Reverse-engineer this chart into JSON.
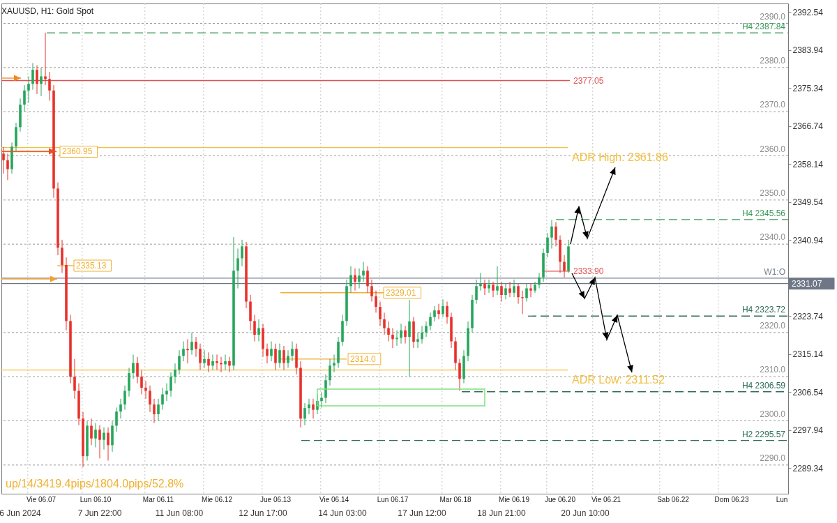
{
  "chart_data": {
    "type": "candlestick",
    "title": "XAUUSD, H1:  Gold Spot",
    "categories": [
      null,
      null,
      null,
      null,
      null,
      null,
      null,
      null,
      null,
      "Vie 06.07",
      null,
      null,
      null,
      null,
      null,
      null,
      null,
      null,
      null,
      null,
      null,
      null,
      "Lun 06.10",
      null,
      null,
      null,
      null,
      null,
      null,
      null,
      null,
      null,
      null,
      null,
      null,
      null,
      null,
      "Mar 06.11",
      null,
      null,
      null,
      null,
      null,
      null,
      null,
      null,
      null,
      null,
      null,
      null,
      null,
      "Mie 06.12",
      null,
      null,
      null,
      null,
      null,
      null,
      null,
      null,
      null,
      null,
      null,
      null,
      null,
      "Jue 06.13",
      null,
      null,
      null,
      null,
      null,
      null,
      null,
      null,
      null,
      null,
      null,
      null,
      null,
      "Vie 06.14",
      null,
      null,
      null,
      null,
      null,
      null,
      null,
      null,
      null,
      null,
      null,
      null,
      null,
      "Lun 06.17",
      null,
      null,
      null,
      null,
      null,
      null,
      null,
      null,
      null,
      null,
      null,
      null,
      null,
      null,
      "Mar 06.18",
      null,
      null,
      null,
      null,
      null,
      null,
      null,
      null,
      null,
      null,
      null,
      null,
      null,
      "Mie 06.19",
      null,
      null,
      null,
      null,
      null,
      null,
      null,
      null,
      null,
      null,
      "Jue 06.20",
      null,
      null,
      null,
      null,
      null,
      null,
      null,
      null,
      null,
      null,
      "Vie 06.21",
      null,
      null,
      null,
      null,
      null,
      null,
      null,
      null,
      null,
      null,
      null,
      null,
      null,
      null,
      null,
      "Sab 06.22",
      null,
      null,
      null,
      null,
      null,
      null,
      null,
      null,
      null,
      null,
      null,
      null,
      null,
      "Dom 06.23",
      null,
      null,
      null,
      null,
      null,
      null,
      null,
      null,
      null,
      null,
      null,
      "Lun",
      null
    ],
    "ohlc": [
      [
        2360.5,
        2362.0,
        2356.0,
        2359.0
      ],
      [
        2359.0,
        2360.5,
        2354.5,
        2357.0
      ],
      [
        2357.0,
        2363.0,
        2356.0,
        2362.1
      ],
      [
        2362.1,
        2367.5,
        2361.0,
        2366.5
      ],
      [
        2366.5,
        2373.0,
        2365.5,
        2371.6
      ],
      [
        2371.6,
        2376.0,
        2370.0,
        2374.8
      ],
      [
        2374.8,
        2378.0,
        2372.0,
        2376.3
      ],
      [
        2376.3,
        2381.0,
        2375.0,
        2379.5
      ],
      [
        2379.5,
        2380.5,
        2374.0,
        2376.3
      ],
      [
        2376.3,
        2380.0,
        2373.5,
        2378.0
      ],
      [
        2378.0,
        2387.9,
        2376.0,
        2377.4
      ],
      [
        2377.4,
        2379.0,
        2372.5,
        2374.8
      ],
      [
        2374.8,
        2376.0,
        2350.5,
        2352.6
      ],
      [
        2352.6,
        2354.0,
        2337.5,
        2339.2
      ],
      [
        2339.2,
        2341.0,
        2333.5,
        2335.3
      ],
      [
        2335.3,
        2337.0,
        2320.5,
        2322.6
      ],
      [
        2322.6,
        2324.0,
        2308.5,
        2310.0
      ],
      [
        2310.0,
        2314.0,
        2305.0,
        2306.8
      ],
      [
        2306.8,
        2308.5,
        2299.0,
        2300.5
      ],
      [
        2300.5,
        2302.0,
        2289.5,
        2292.0
      ],
      [
        2292.0,
        2300.0,
        2291.0,
        2298.9
      ],
      [
        2298.9,
        2300.5,
        2294.5,
        2296.0
      ],
      [
        2296.0,
        2299.5,
        2294.0,
        2298.0
      ],
      [
        2298.0,
        2299.0,
        2291.5,
        2295.7
      ],
      [
        2295.7,
        2298.5,
        2293.5,
        2297.3
      ],
      [
        2297.3,
        2298.5,
        2291.0,
        2294.5
      ],
      [
        2294.5,
        2300.0,
        2293.0,
        2298.9
      ],
      [
        2298.9,
        2303.0,
        2297.5,
        2302.1
      ],
      [
        2302.1,
        2305.0,
        2300.5,
        2303.7
      ],
      [
        2303.7,
        2308.0,
        2302.5,
        2306.8
      ],
      [
        2306.8,
        2312.0,
        2305.5,
        2310.8
      ],
      [
        2310.8,
        2315.0,
        2309.5,
        2313.1
      ],
      [
        2313.1,
        2314.5,
        2308.5,
        2310.0
      ],
      [
        2310.0,
        2311.5,
        2306.0,
        2307.5
      ],
      [
        2307.5,
        2309.0,
        2305.0,
        2306.8
      ],
      [
        2306.8,
        2308.0,
        2302.0,
        2303.7
      ],
      [
        2303.7,
        2305.0,
        2299.5,
        2301.5
      ],
      [
        2301.5,
        2305.0,
        2300.0,
        2303.7
      ],
      [
        2303.7,
        2307.5,
        2302.5,
        2306.0
      ],
      [
        2306.0,
        2308.5,
        2304.5,
        2306.8
      ],
      [
        2306.8,
        2311.0,
        2305.5,
        2310.0
      ],
      [
        2310.0,
        2313.0,
        2308.5,
        2311.6
      ],
      [
        2311.6,
        2316.0,
        2310.5,
        2314.7
      ],
      [
        2314.7,
        2318.0,
        2313.5,
        2316.3
      ],
      [
        2316.3,
        2318.5,
        2313.0,
        2316.0
      ],
      [
        2316.0,
        2320.0,
        2315.0,
        2317.9
      ],
      [
        2317.9,
        2319.0,
        2314.5,
        2316.3
      ],
      [
        2316.3,
        2317.5,
        2311.5,
        2313.1
      ],
      [
        2313.1,
        2316.0,
        2312.0,
        2314.0
      ],
      [
        2314.0,
        2315.5,
        2311.0,
        2312.5
      ],
      [
        2312.5,
        2315.0,
        2311.5,
        2313.5
      ],
      [
        2313.5,
        2315.0,
        2311.5,
        2313.1
      ],
      [
        2313.1,
        2314.5,
        2311.0,
        2312.8
      ],
      [
        2312.8,
        2315.0,
        2311.5,
        2313.5
      ],
      [
        2313.5,
        2314.5,
        2311.0,
        2312.5
      ],
      [
        2312.5,
        2341.6,
        2311.5,
        2334.0
      ],
      [
        2334.0,
        2339.0,
        2330.0,
        2336.8
      ],
      [
        2336.8,
        2341.0,
        2335.0,
        2339.5
      ],
      [
        2339.5,
        2340.5,
        2325.5,
        2327.0
      ],
      [
        2327.0,
        2328.5,
        2320.5,
        2322.6
      ],
      [
        2322.6,
        2324.0,
        2318.0,
        2319.5
      ],
      [
        2319.5,
        2323.0,
        2318.0,
        2321.0
      ],
      [
        2321.0,
        2322.0,
        2314.5,
        2316.3
      ],
      [
        2316.3,
        2317.5,
        2313.0,
        2314.7
      ],
      [
        2314.7,
        2318.0,
        2313.5,
        2316.3
      ],
      [
        2316.3,
        2317.5,
        2311.5,
        2313.1
      ],
      [
        2313.1,
        2317.5,
        2312.0,
        2316.0
      ],
      [
        2316.0,
        2317.0,
        2311.5,
        2313.1
      ],
      [
        2313.1,
        2316.0,
        2312.0,
        2314.7
      ],
      [
        2314.7,
        2318.0,
        2313.5,
        2316.3
      ],
      [
        2316.3,
        2317.5,
        2310.5,
        2312.0
      ],
      [
        2312.0,
        2313.5,
        2298.5,
        2300.5
      ],
      [
        2300.5,
        2304.0,
        2299.0,
        2302.9
      ],
      [
        2302.9,
        2305.0,
        2301.5,
        2303.7
      ],
      [
        2303.7,
        2305.0,
        2300.5,
        2302.5
      ],
      [
        2302.5,
        2306.0,
        2301.5,
        2304.5
      ],
      [
        2304.5,
        2306.5,
        2303.0,
        2305.2
      ],
      [
        2305.2,
        2310.5,
        2304.0,
        2309.2
      ],
      [
        2309.2,
        2314.0,
        2308.0,
        2312.5
      ],
      [
        2312.5,
        2315.0,
        2311.0,
        2313.1
      ],
      [
        2313.1,
        2319.0,
        2312.0,
        2317.9
      ],
      [
        2317.9,
        2324.0,
        2317.0,
        2322.6
      ],
      [
        2322.6,
        2332.0,
        2321.5,
        2330.5
      ],
      [
        2330.5,
        2335.0,
        2329.0,
        2333.0
      ],
      [
        2333.0,
        2334.5,
        2329.5,
        2331.5
      ],
      [
        2331.5,
        2334.5,
        2330.0,
        2332.9
      ],
      [
        2332.9,
        2336.0,
        2331.5,
        2334.0
      ],
      [
        2334.0,
        2335.0,
        2329.0,
        2330.5
      ],
      [
        2330.5,
        2332.0,
        2327.0,
        2328.2
      ],
      [
        2328.2,
        2329.5,
        2324.5,
        2325.8
      ],
      [
        2325.8,
        2327.0,
        2321.5,
        2323.0
      ],
      [
        2323.0,
        2324.5,
        2319.5,
        2321.0
      ],
      [
        2321.0,
        2322.5,
        2318.0,
        2319.5
      ],
      [
        2319.5,
        2321.0,
        2316.5,
        2318.5
      ],
      [
        2318.5,
        2320.5,
        2317.0,
        2318.8
      ],
      [
        2318.8,
        2322.0,
        2317.5,
        2320.5
      ],
      [
        2320.5,
        2321.5,
        2317.5,
        2319.0
      ],
      [
        2319.0,
        2327.4,
        2310.0,
        2322.5
      ],
      [
        2322.5,
        2323.5,
        2316.5,
        2317.9
      ],
      [
        2317.9,
        2320.0,
        2316.5,
        2318.5
      ],
      [
        2318.5,
        2321.5,
        2317.5,
        2320.0
      ],
      [
        2320.0,
        2322.5,
        2319.0,
        2321.5
      ],
      [
        2321.5,
        2324.5,
        2320.5,
        2323.5
      ],
      [
        2323.5,
        2326.0,
        2322.5,
        2325.0
      ],
      [
        2325.0,
        2326.5,
        2323.0,
        2324.2
      ],
      [
        2324.2,
        2327.5,
        2323.5,
        2326.0
      ],
      [
        2326.0,
        2327.0,
        2322.0,
        2323.5
      ],
      [
        2323.5,
        2324.5,
        2316.5,
        2318.0
      ],
      [
        2318.0,
        2319.0,
        2311.5,
        2313.1
      ],
      [
        2313.1,
        2314.0,
        2306.8,
        2309.5
      ],
      [
        2309.5,
        2316.0,
        2308.5,
        2314.7
      ],
      [
        2314.7,
        2322.5,
        2313.5,
        2321.0
      ],
      [
        2321.0,
        2328.5,
        2320.0,
        2327.4
      ],
      [
        2327.4,
        2332.0,
        2326.5,
        2330.5
      ],
      [
        2330.5,
        2333.5,
        2329.5,
        2331.0
      ],
      [
        2331.0,
        2332.0,
        2328.5,
        2330.0
      ],
      [
        2330.0,
        2332.0,
        2329.0,
        2330.8
      ],
      [
        2330.8,
        2331.5,
        2328.0,
        2329.5
      ],
      [
        2329.5,
        2335.0,
        2328.5,
        2330.5
      ],
      [
        2330.5,
        2331.5,
        2327.0,
        2328.5
      ],
      [
        2328.5,
        2331.0,
        2327.5,
        2330.0
      ],
      [
        2330.0,
        2331.5,
        2328.0,
        2329.0
      ],
      [
        2329.0,
        2332.0,
        2328.0,
        2330.5
      ],
      [
        2330.5,
        2331.0,
        2326.5,
        2328.0
      ],
      [
        2328.0,
        2329.5,
        2324.2,
        2327.8
      ],
      [
        2327.8,
        2331.0,
        2327.0,
        2330.0
      ],
      [
        2330.0,
        2331.0,
        2328.0,
        2329.5
      ],
      [
        2329.5,
        2331.5,
        2329.0,
        2330.8
      ],
      [
        2330.8,
        2333.5,
        2330.0,
        2332.5
      ],
      [
        2332.5,
        2339.0,
        2331.5,
        2338.0
      ],
      [
        2338.0,
        2342.5,
        2337.0,
        2341.5
      ],
      [
        2341.5,
        2345.5,
        2339.0,
        2344.0
      ],
      [
        2344.0,
        2345.0,
        2339.5,
        2341.0
      ],
      [
        2341.0,
        2342.0,
        2333.5,
        2336.0
      ],
      [
        2336.0,
        2337.5,
        2332.5,
        2334.0
      ],
      [
        2334.0,
        2341.0,
        2333.5,
        2339.5
      ],
      null,
      null,
      null,
      null,
      null,
      null,
      null,
      null,
      null,
      null,
      null,
      null,
      null,
      null,
      null,
      null,
      null,
      null,
      null,
      null,
      null,
      null,
      null,
      null,
      null,
      null,
      null,
      null,
      null,
      null,
      null,
      null,
      null,
      null,
      null,
      null,
      null,
      null,
      null,
      null,
      null,
      null,
      null,
      null,
      null,
      null,
      null,
      null,
      null,
      null,
      null,
      null
    ],
    "colors": [
      "#e8312a",
      "#e8312a",
      "#26a65b",
      "#26a65b",
      "#26a65b",
      "#26a65b",
      "#26a65b",
      "#26a65b",
      "#e8312a",
      "#26a65b",
      "#e8312a",
      "#e8312a",
      "#e8312a",
      "#e8312a",
      "#e8312a",
      "#e8312a",
      "#e8312a",
      "#e8312a",
      "#e8312a",
      "#e8312a",
      "#26a65b",
      "#e8312a",
      "#26a65b",
      "#e8312a",
      "#26a65b",
      "#e8312a",
      "#26a65b",
      "#26a65b",
      "#26a65b",
      "#26a65b",
      "#26a65b",
      "#26a65b",
      "#e8312a",
      "#e8312a",
      "#e8312a",
      "#e8312a",
      "#e8312a",
      "#26a65b",
      "#26a65b",
      "#26a65b",
      "#26a65b",
      "#26a65b",
      "#26a65b",
      "#26a65b",
      "#e8312a",
      "#26a65b",
      "#e8312a",
      "#e8312a",
      "#26a65b",
      "#e8312a",
      "#26a65b",
      "#e8312a",
      "#e8312a",
      "#26a65b",
      "#e8312a",
      "#26a65b",
      "#26a65b",
      "#26a65b",
      "#e8312a",
      "#e8312a",
      "#e8312a",
      "#26a65b",
      "#e8312a",
      "#e8312a",
      "#26a65b",
      "#e8312a",
      "#26a65b",
      "#e8312a",
      "#26a65b",
      "#26a65b",
      "#e8312a",
      "#e8312a",
      "#26a65b",
      "#26a65b",
      "#e8312a",
      "#26a65b",
      "#26a65b",
      "#26a65b",
      "#26a65b",
      "#26a65b",
      "#26a65b",
      "#26a65b",
      "#26a65b",
      "#26a65b",
      "#e8312a",
      "#26a65b",
      "#26a65b",
      "#e8312a",
      "#e8312a",
      "#e8312a",
      "#e8312a",
      "#e8312a",
      "#e8312a",
      "#e8312a",
      "#26a65b",
      "#26a65b",
      "#e8312a",
      "#26a65b",
      "#e8312a",
      "#26a65b",
      "#26a65b",
      "#26a65b",
      "#26a65b",
      "#26a65b",
      "#e8312a",
      "#26a65b",
      "#e8312a",
      "#e8312a",
      "#e8312a",
      "#e8312a",
      "#26a65b",
      "#26a65b",
      "#26a65b",
      "#26a65b",
      "#26a65b",
      "#e8312a",
      "#26a65b",
      "#e8312a",
      "#26a65b",
      "#e8312a",
      "#26a65b",
      "#e8312a",
      "#26a65b",
      "#e8312a",
      "#e8312a",
      "#26a65b",
      "#e8312a",
      "#26a65b",
      "#26a65b",
      "#26a65b",
      "#26a65b",
      "#26a65b",
      "#e8312a",
      "#e8312a",
      "#e8312a",
      "#26a65b",
      null,
      null,
      null,
      null,
      null,
      null,
      null,
      null,
      null,
      null,
      null,
      null,
      null,
      null,
      null,
      null,
      null,
      null,
      null,
      null,
      null,
      null,
      null,
      null,
      null,
      null,
      null,
      null,
      null,
      null,
      null,
      null,
      null,
      null,
      null,
      null,
      null,
      null,
      null,
      null,
      null,
      null,
      null,
      null,
      null,
      null,
      null,
      null,
      null,
      null,
      null,
      null
    ],
    "ylim": [
      2283.5,
      2394.5
    ],
    "yticks": [
      2392.54,
      2383.94,
      2375.34,
      2366.74,
      2358.14,
      2349.54,
      2340.94,
      2323.74,
      2315.14,
      2306.54,
      2297.94,
      2289.34
    ],
    "y2lim": [
      2283.5,
      2394.5
    ],
    "y2ticks": [
      {
        "value": 2390,
        "label": "2390.0"
      },
      {
        "value": 2380,
        "label": "2380.0"
      },
      {
        "value": 2370,
        "label": "2370.0"
      },
      {
        "value": 2360,
        "label": "2360.0"
      },
      {
        "value": 2350,
        "label": "2350.0"
      },
      {
        "value": 2340,
        "label": "2340.0"
      },
      {
        "value": 2320,
        "label": "2320.0"
      },
      {
        "value": 2310,
        "label": "2310.0"
      },
      {
        "value": 2300,
        "label": "2300.0"
      },
      {
        "value": 2290,
        "label": "2290.0"
      }
    ],
    "grid": true,
    "ref_lines": [
      {
        "axis": "y",
        "value": 2387.84,
        "label": "H4 2387.84",
        "color": "#3a9a5a",
        "line_style": "dashed"
      },
      {
        "axis": "y",
        "value": 2377.05,
        "label": "2377.05",
        "color": "#e05050",
        "line_style": "solid"
      },
      {
        "axis": "y",
        "value": 2361.86,
        "label": "ADR High: 2361.86",
        "color": "#f0c040",
        "line_style": "solid"
      },
      {
        "axis": "y",
        "value": 2360.95,
        "label": "2360.95",
        "color": "#f0b030",
        "line_style": "solid"
      },
      {
        "axis": "y",
        "value": 2345.56,
        "label": "H4 2345.56",
        "color": "#3a9a5a",
        "line_style": "dashed"
      },
      {
        "axis": "y",
        "value": 2335.13,
        "label": "2335.13",
        "color": "#f0b030",
        "line_style": "solid"
      },
      {
        "axis": "y",
        "value": 2333.9,
        "label": "2333.90",
        "color": "#e05050",
        "line_style": "solid"
      },
      {
        "axis": "y",
        "value": 2332.3,
        "label": "W1:O",
        "color": "#7a8290",
        "line_style": "solid"
      },
      {
        "axis": "y",
        "value": 2331.07,
        "label": "2331.07",
        "color": "#6f7787",
        "line_style": "solid"
      },
      {
        "axis": "y",
        "value": 2329.01,
        "label": "2329.01",
        "color": "#f0b030",
        "line_style": "solid"
      },
      {
        "axis": "y",
        "value": 2323.72,
        "label": "H4 2323.72",
        "color": "#2e6b5a",
        "line_style": "dashed"
      },
      {
        "axis": "y",
        "value": 2314.0,
        "label": "2314.0",
        "color": "#f0b030",
        "line_style": "solid"
      },
      {
        "axis": "y",
        "value": 2311.52,
        "label": "ADR Low: 2311.52",
        "color": "#f0c040",
        "line_style": "solid"
      },
      {
        "axis": "y",
        "value": 2306.59,
        "label": "H4 2306.59",
        "color": "#2e6b5a",
        "line_style": "dashed"
      },
      {
        "axis": "y",
        "value": 2295.57,
        "label": "H2 2295.57",
        "color": "#2e6b5a",
        "line_style": "dashed"
      }
    ],
    "annotations": [
      "6 Jun 2024",
      "7 Jun 22:00",
      "11 Jun 08:00",
      "12 Jun 17:00",
      "14 Jun 03:00",
      "17 Jun 12:00",
      "18 Jun 21:00",
      "20 Jun 10:00",
      "up/14/3419.4pips/1804.0pips/52.8%"
    ]
  }
}
